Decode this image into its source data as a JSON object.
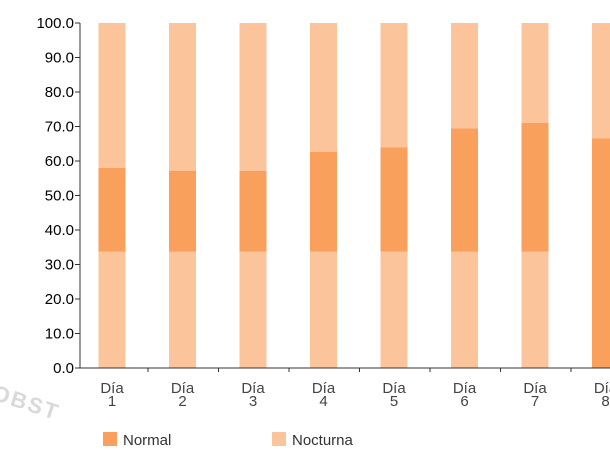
{
  "chart_data": {
    "type": "bar",
    "stacked": true,
    "categories": [
      [
        "Día",
        "1"
      ],
      [
        "Día",
        "2"
      ],
      [
        "Día",
        "3"
      ],
      [
        "Día",
        "4"
      ],
      [
        "Día",
        "5"
      ],
      [
        "Día",
        "6"
      ],
      [
        "Día",
        "7"
      ],
      [
        "Día",
        "8"
      ]
    ],
    "series": [
      {
        "name": "Nocturna",
        "values": [
          33.7,
          33.7,
          33.7,
          33.7,
          33.7,
          33.7,
          33.7,
          0
        ],
        "color": "#fcc49a"
      },
      {
        "name": "Normal",
        "values": [
          24.3,
          23.5,
          23.5,
          29.0,
          30.3,
          35.8,
          37.4,
          66.6
        ],
        "color": "#f9a05c"
      },
      {
        "name": "Nocturna",
        "values": [
          42.0,
          42.8,
          42.8,
          37.3,
          36.0,
          30.5,
          28.9,
          33.4
        ],
        "color": "#fcc49a"
      }
    ],
    "legend": [
      {
        "label": "Normal",
        "color": "#f9a05c"
      },
      {
        "label": "Nocturna",
        "color": "#fcc49a"
      }
    ],
    "ylim": [
      0,
      100
    ],
    "yticks": [
      "0.0",
      "10.0",
      "20.0",
      "30.0",
      "40.0",
      "50.0",
      "60.0",
      "70.0",
      "80.0",
      "90.0",
      "100.0"
    ],
    "legend_position": "bottom-left",
    "grid": false
  },
  "watermark": "OBST"
}
